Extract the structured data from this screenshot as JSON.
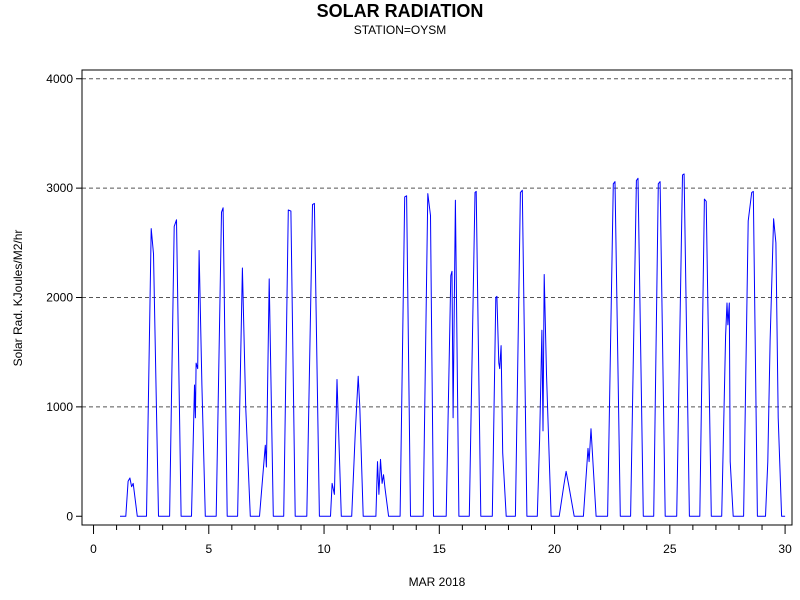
{
  "chart_data": {
    "type": "line",
    "title": "SOLAR RADIATION",
    "subtitle": "STATION=OYSM",
    "xlabel": "MAR 2018",
    "ylabel": "Solar Rad. KJoules/M2/hr",
    "xlim": [
      -0.5,
      30.3
    ],
    "ylim": [
      -80,
      4080
    ],
    "xticks": [
      0,
      5,
      10,
      15,
      20,
      25,
      30
    ],
    "yticks": [
      0,
      1000,
      2000,
      3000,
      4000
    ],
    "grid": "horizontal-dashed",
    "series": [
      {
        "color": "#0000ff",
        "x": [
          1.15,
          1.4,
          1.5,
          1.58,
          1.65,
          1.72,
          1.9,
          2.3,
          2.5,
          2.6,
          2.82,
          3.3,
          3.5,
          3.6,
          3.8,
          4.25,
          4.38,
          4.42,
          4.45,
          4.52,
          4.58,
          4.7,
          4.85,
          5.32,
          5.55,
          5.62,
          5.8,
          6.25,
          6.46,
          6.6,
          6.8,
          7.2,
          7.45,
          7.5,
          7.62,
          7.8,
          8.25,
          8.45,
          8.56,
          8.75,
          9.25,
          9.5,
          9.58,
          9.8,
          10.28,
          10.35,
          10.45,
          10.56,
          10.75,
          11.2,
          11.35,
          11.48,
          11.55,
          11.7,
          12.25,
          12.32,
          12.38,
          12.45,
          12.52,
          12.58,
          12.65,
          12.8,
          13.3,
          13.5,
          13.58,
          13.75,
          14.3,
          14.5,
          14.62,
          14.66,
          14.75,
          15.3,
          15.5,
          15.55,
          15.6,
          15.7,
          15.85,
          16.3,
          16.55,
          16.6,
          16.8,
          17.3,
          17.45,
          17.5,
          17.58,
          17.62,
          17.68,
          17.75,
          17.9,
          18.3,
          18.52,
          18.6,
          18.8,
          19.25,
          19.35,
          19.45,
          19.5,
          19.55,
          19.65,
          19.85,
          20.2,
          20.4,
          20.5,
          20.6,
          20.85,
          21.25,
          21.45,
          21.5,
          21.58,
          21.8,
          22.3,
          22.55,
          22.62,
          22.85,
          23.3,
          23.55,
          23.62,
          23.85,
          24.3,
          24.5,
          24.58,
          24.8,
          25.3,
          25.55,
          25.62,
          25.85,
          26.3,
          26.5,
          26.58,
          26.8,
          27.25,
          27.42,
          27.48,
          27.52,
          27.58,
          27.62,
          27.75,
          28.2,
          28.4,
          28.55,
          28.62,
          28.8,
          29.15,
          29.25,
          29.35,
          29.5,
          29.6,
          29.7,
          29.85,
          30.0
        ],
        "values": [
          0,
          0,
          320,
          350,
          270,
          300,
          0,
          0,
          2630,
          2400,
          0,
          0,
          2650,
          2710,
          0,
          0,
          1200,
          900,
          1400,
          1350,
          2430,
          1200,
          0,
          0,
          2780,
          2820,
          0,
          0,
          2270,
          1000,
          0,
          0,
          650,
          450,
          2170,
          0,
          0,
          2800,
          2790,
          0,
          0,
          2850,
          2860,
          0,
          0,
          300,
          200,
          1250,
          0,
          0,
          750,
          1280,
          1000,
          0,
          0,
          500,
          200,
          520,
          300,
          380,
          250,
          0,
          0,
          2920,
          2930,
          0,
          0,
          2950,
          2750,
          1800,
          0,
          0,
          2200,
          2240,
          900,
          2890,
          0,
          0,
          2960,
          2970,
          0,
          0,
          2000,
          2010,
          1400,
          1350,
          1560,
          580,
          0,
          0,
          2960,
          2980,
          0,
          0,
          700,
          1700,
          780,
          2210,
          1300,
          0,
          0,
          280,
          410,
          300,
          0,
          0,
          620,
          500,
          800,
          0,
          0,
          3040,
          3060,
          0,
          0,
          3070,
          3090,
          0,
          0,
          3040,
          3060,
          0,
          0,
          3120,
          3130,
          0,
          0,
          2900,
          2880,
          0,
          0,
          1650,
          1950,
          1750,
          1950,
          500,
          0,
          0,
          2700,
          2960,
          2970,
          0,
          0,
          500,
          1600,
          2720,
          2500,
          900,
          0,
          0
        ]
      }
    ]
  }
}
